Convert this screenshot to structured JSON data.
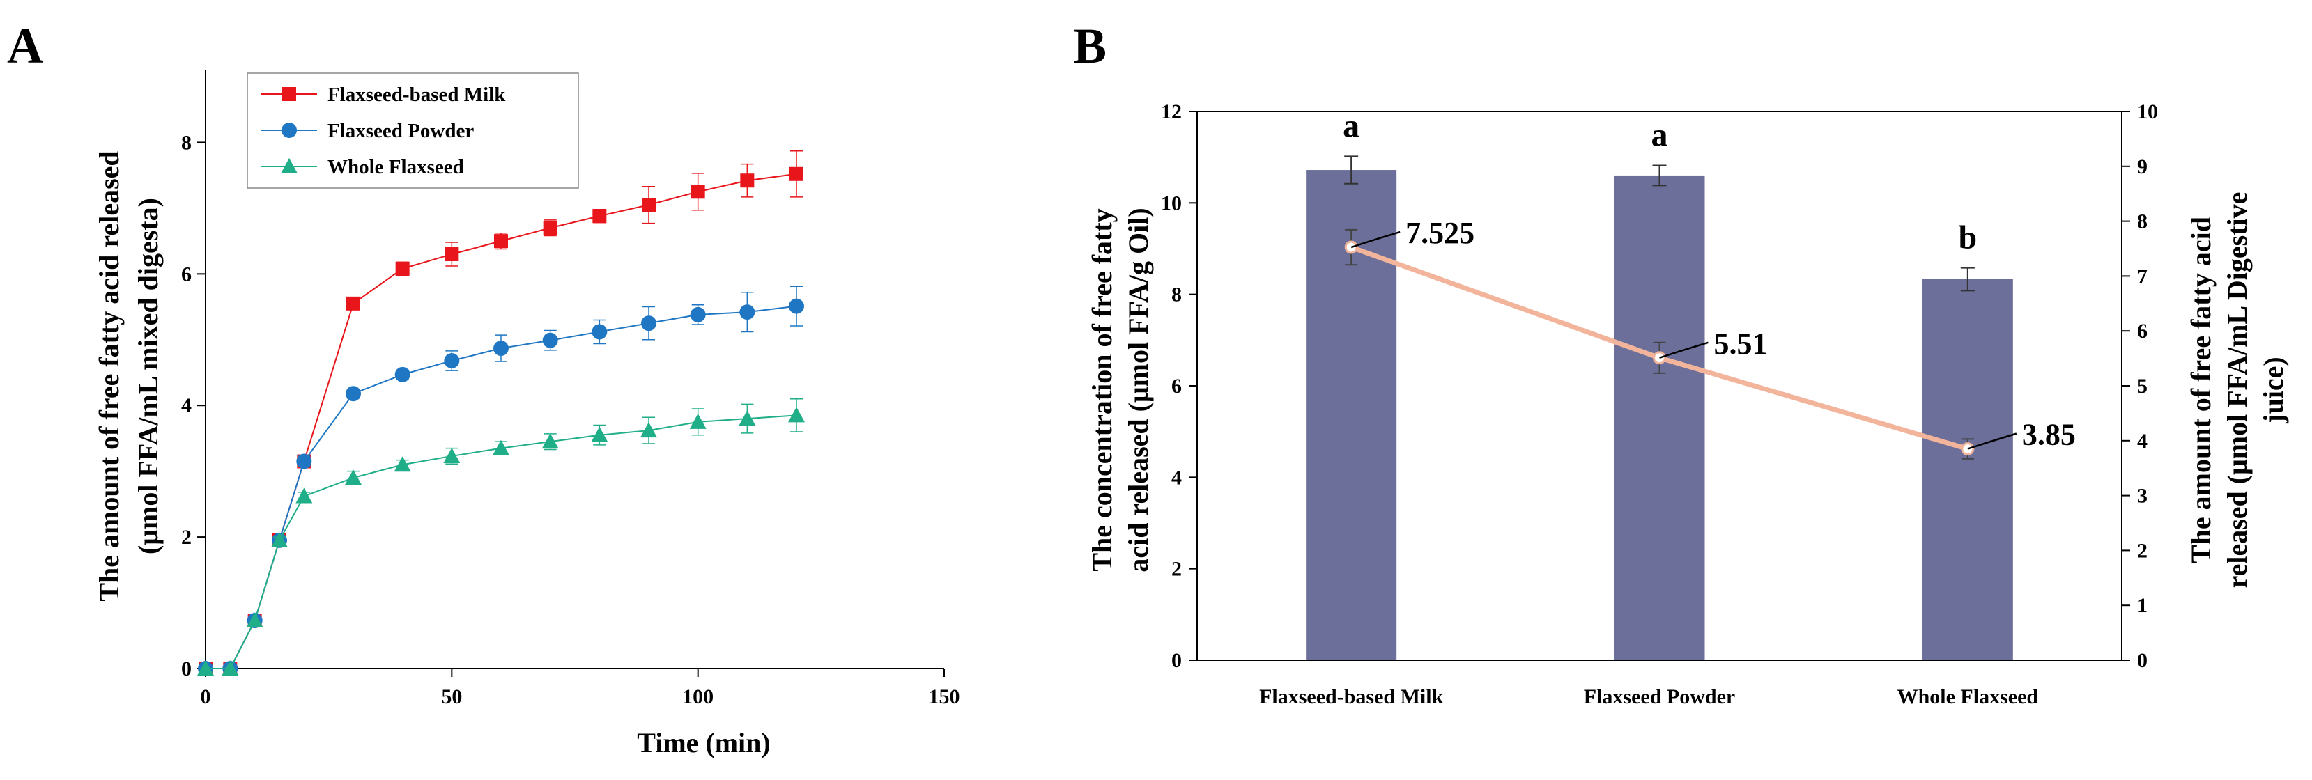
{
  "chart_data": [
    {
      "panel": "A",
      "type": "line",
      "xlabel": "Time (min)",
      "ylabel_line1": "The amount of free fatty acid released",
      "ylabel_line2": "(μmol FFA/mL mixed digesta)",
      "xlim": [
        0,
        150
      ],
      "ylim": [
        0,
        9
      ],
      "xticks": [
        0,
        50,
        100,
        150
      ],
      "yticks": [
        0,
        2,
        4,
        6,
        8
      ],
      "x": [
        0,
        5,
        10,
        15,
        20,
        30,
        40,
        50,
        60,
        70,
        80,
        90,
        100,
        110,
        120
      ],
      "series": [
        {
          "name": "Flaxseed-based Milk",
          "color": "#e8151b",
          "marker": "square",
          "values": [
            0,
            0,
            0.73,
            1.95,
            3.15,
            5.55,
            6.08,
            6.3,
            6.5,
            6.7,
            6.88,
            7.05,
            7.25,
            7.42,
            7.52
          ],
          "errors": [
            0,
            0,
            0.03,
            0.05,
            0.08,
            0.08,
            0.1,
            0.18,
            0.12,
            0.12,
            0.1,
            0.28,
            0.28,
            0.25,
            0.35
          ]
        },
        {
          "name": "Flaxseed Powder",
          "color": "#1f77c4",
          "marker": "circle",
          "values": [
            0,
            0,
            0.73,
            1.95,
            3.15,
            4.18,
            4.47,
            4.68,
            4.87,
            4.99,
            5.12,
            5.25,
            5.38,
            5.42,
            5.51
          ],
          "errors": [
            0,
            0,
            0.03,
            0.05,
            0.08,
            0.07,
            0.07,
            0.15,
            0.2,
            0.15,
            0.18,
            0.25,
            0.15,
            0.3,
            0.3
          ]
        },
        {
          "name": "Whole Flaxseed",
          "color": "#1fae88",
          "marker": "triangle",
          "values": [
            0,
            0,
            0.73,
            1.95,
            2.62,
            2.9,
            3.1,
            3.23,
            3.35,
            3.45,
            3.55,
            3.62,
            3.75,
            3.8,
            3.85
          ],
          "errors": [
            0,
            0,
            0.03,
            0.05,
            0.06,
            0.1,
            0.07,
            0.12,
            0.1,
            0.12,
            0.15,
            0.2,
            0.2,
            0.22,
            0.25
          ]
        }
      ]
    },
    {
      "panel": "B",
      "type": "bar",
      "categories": [
        "Flaxseed-based Milk",
        "Flaxseed Powder",
        "Whole Flaxseed"
      ],
      "bar_color": "#6b6f9a",
      "line_color": "#f2b49a",
      "left_ylabel_line1": "The concentration of free fatty",
      "left_ylabel_line2": "acid released (μmol FFA/g Oil)",
      "right_ylabel_line1": "The amount of free fatty acid",
      "right_ylabel_line2": "released (μmol FFA/mL Digestive",
      "right_ylabel_line3": "juice)",
      "left_ylim": [
        0,
        12
      ],
      "right_ylim": [
        0,
        10
      ],
      "left_yticks": [
        0,
        2,
        4,
        6,
        8,
        10,
        12
      ],
      "right_yticks": [
        0,
        1,
        2,
        3,
        4,
        5,
        6,
        7,
        8,
        9,
        10
      ],
      "bar_values": [
        10.72,
        10.6,
        8.33
      ],
      "bar_errors": [
        0.3,
        0.22,
        0.25
      ],
      "significance": [
        "a",
        "a",
        "b"
      ],
      "line_values": [
        7.525,
        5.51,
        3.85
      ],
      "line_errors": [
        0.32,
        0.28,
        0.18
      ],
      "line_labels": [
        "7.525",
        "5.51",
        "3.85"
      ]
    }
  ]
}
